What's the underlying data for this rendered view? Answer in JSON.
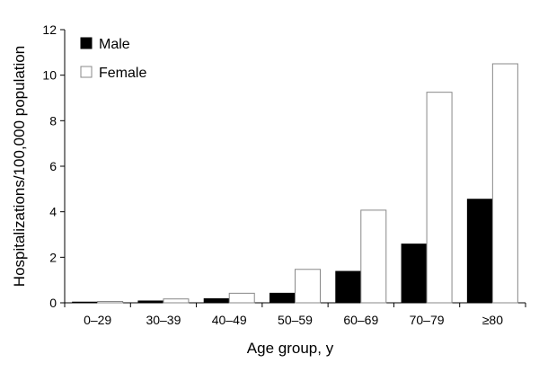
{
  "chart_data": {
    "type": "bar",
    "title": "",
    "xlabel": "Age group, y",
    "ylabel": "Hospitalizations/100,000 population",
    "ylim": [
      0,
      12
    ],
    "yticks": [
      0,
      2,
      4,
      6,
      8,
      10,
      12
    ],
    "grid": false,
    "legend_position": "top-left",
    "categories": [
      "0–29",
      "30–39",
      "40–49",
      "50–59",
      "60–69",
      "70–79",
      "≥80"
    ],
    "series": [
      {
        "name": "Male",
        "color": "#000000",
        "values": [
          0.03,
          0.08,
          0.18,
          0.42,
          1.38,
          2.58,
          4.55
        ]
      },
      {
        "name": "Female",
        "color": "#ffffff",
        "values": [
          0.06,
          0.17,
          0.42,
          1.47,
          4.07,
          9.25,
          10.5
        ]
      }
    ]
  }
}
